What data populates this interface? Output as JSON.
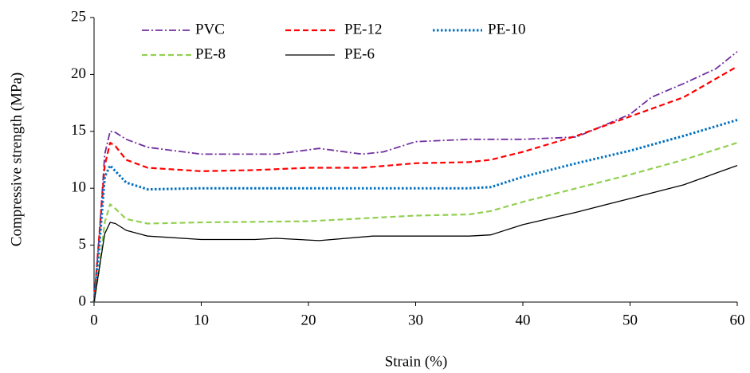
{
  "chart_data": {
    "type": "line",
    "xlabel": "Strain (%)",
    "ylabel": "Compressive strength (MPa)",
    "xlim": [
      0,
      60
    ],
    "xticks": [
      0,
      10,
      20,
      30,
      40,
      50,
      60
    ],
    "ylim": [
      0,
      25
    ],
    "yticks": [
      0,
      5,
      10,
      15,
      20,
      25
    ],
    "grid": false,
    "legend": "upper left",
    "series": [
      {
        "name": "PVC",
        "color": "#7030a0",
        "linestyle": "dashdot",
        "x": [
          0,
          0.5,
          1,
          1.5,
          2,
          3,
          5,
          10,
          15,
          17,
          21,
          25,
          27,
          30,
          35,
          40,
          45,
          50,
          52,
          55,
          58,
          60
        ],
        "values": [
          0,
          6,
          13,
          15,
          14.9,
          14.3,
          13.6,
          13,
          13,
          13,
          13.5,
          13,
          13.2,
          14.1,
          14.3,
          14.3,
          14.5,
          16.5,
          18,
          19.2,
          20.5,
          22
        ]
      },
      {
        "name": "PE-12",
        "color": "#ff0000",
        "linestyle": "dashed",
        "x": [
          0,
          0.5,
          1,
          1.5,
          2,
          3,
          5,
          10,
          15,
          20,
          25,
          30,
          35,
          37,
          40,
          45,
          50,
          55,
          60
        ],
        "values": [
          0,
          6,
          12,
          14,
          13.7,
          12.5,
          11.8,
          11.5,
          11.6,
          11.8,
          11.8,
          12.2,
          12.3,
          12.5,
          13.2,
          14.6,
          16.3,
          18,
          20.7
        ]
      },
      {
        "name": "PE-10",
        "color": "#0070c0",
        "linestyle": "dotted",
        "x": [
          0,
          0.5,
          1,
          1.5,
          2,
          3,
          5,
          10,
          20,
          30,
          35,
          37,
          40,
          45,
          50,
          55,
          60
        ],
        "values": [
          0,
          5,
          11,
          12,
          11.5,
          10.5,
          9.9,
          10,
          10,
          10,
          10,
          10.1,
          11,
          12.2,
          13.3,
          14.6,
          16
        ]
      },
      {
        "name": "PE-8",
        "color": "#92d050",
        "linestyle": "dashed",
        "x": [
          0,
          0.5,
          1,
          1.5,
          2,
          3,
          5,
          10,
          20,
          30,
          35,
          37,
          40,
          45,
          50,
          55,
          60
        ],
        "values": [
          0,
          3,
          7,
          8.6,
          8.2,
          7.3,
          6.9,
          7,
          7.1,
          7.6,
          7.7,
          8,
          8.8,
          10,
          11.2,
          12.5,
          14
        ]
      },
      {
        "name": "PE-6",
        "color": "#000000",
        "linestyle": "solid",
        "x": [
          0,
          0.5,
          1,
          1.5,
          2,
          3,
          5,
          10,
          15,
          17,
          21,
          26,
          30,
          35,
          37,
          40,
          45,
          50,
          55,
          60
        ],
        "values": [
          0,
          3,
          6,
          7,
          6.9,
          6.3,
          5.8,
          5.5,
          5.5,
          5.6,
          5.4,
          5.8,
          5.8,
          5.8,
          5.9,
          6.8,
          7.9,
          9.1,
          10.3,
          12
        ]
      }
    ]
  }
}
